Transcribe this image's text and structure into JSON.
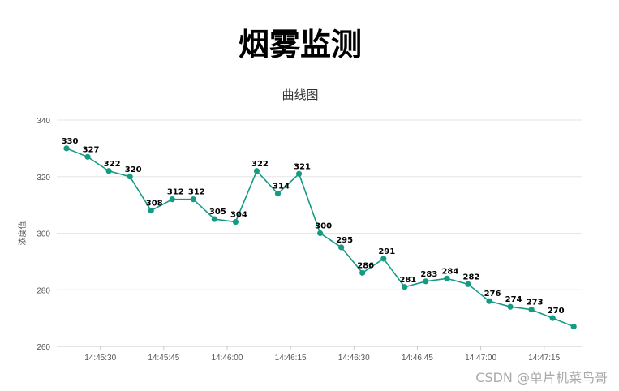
{
  "page": {
    "title": "烟雾监测",
    "watermark": "CSDN @单片机菜鸟哥"
  },
  "colors": {
    "series": "#159a84",
    "grid": "#e6e6e6",
    "axis": "#c8c8c8"
  },
  "chart_data": {
    "type": "line",
    "title": "曲线图",
    "xlabel": "",
    "ylabel": "浓度值",
    "ylim": [
      260,
      340
    ],
    "yticks": [
      260,
      280,
      300,
      320,
      340
    ],
    "x": [
      "14:45:22",
      "14:45:27",
      "14:45:32",
      "14:45:37",
      "14:45:42",
      "14:45:47",
      "14:45:52",
      "14:45:57",
      "14:46:02",
      "14:46:07",
      "14:46:12",
      "14:46:17",
      "14:46:22",
      "14:46:27",
      "14:46:32",
      "14:46:37",
      "14:46:42",
      "14:46:47",
      "14:46:52",
      "14:46:57",
      "14:47:02",
      "14:47:07",
      "14:47:12",
      "14:47:17",
      "14:47:22"
    ],
    "xticks": [
      "14:45:30",
      "14:45:45",
      "14:46:00",
      "14:46:15",
      "14:46:30",
      "14:46:45",
      "14:47:00",
      "14:47:15"
    ],
    "grid": true,
    "legend": "none",
    "series": [
      {
        "values": [
          330,
          327,
          322,
          320,
          308,
          312,
          312,
          305,
          304,
          322,
          314,
          321,
          300,
          295,
          286,
          291,
          281,
          283,
          284,
          282,
          276,
          274,
          273,
          270,
          267
        ],
        "labels": [
          "330",
          "327",
          "322",
          "320",
          "308",
          "312",
          "312",
          "305",
          "304",
          "322",
          "314",
          "321",
          "300",
          "295",
          "286",
          "291",
          "281",
          "283",
          "284",
          "282",
          "276",
          "274",
          "273",
          "270",
          ""
        ]
      }
    ]
  }
}
